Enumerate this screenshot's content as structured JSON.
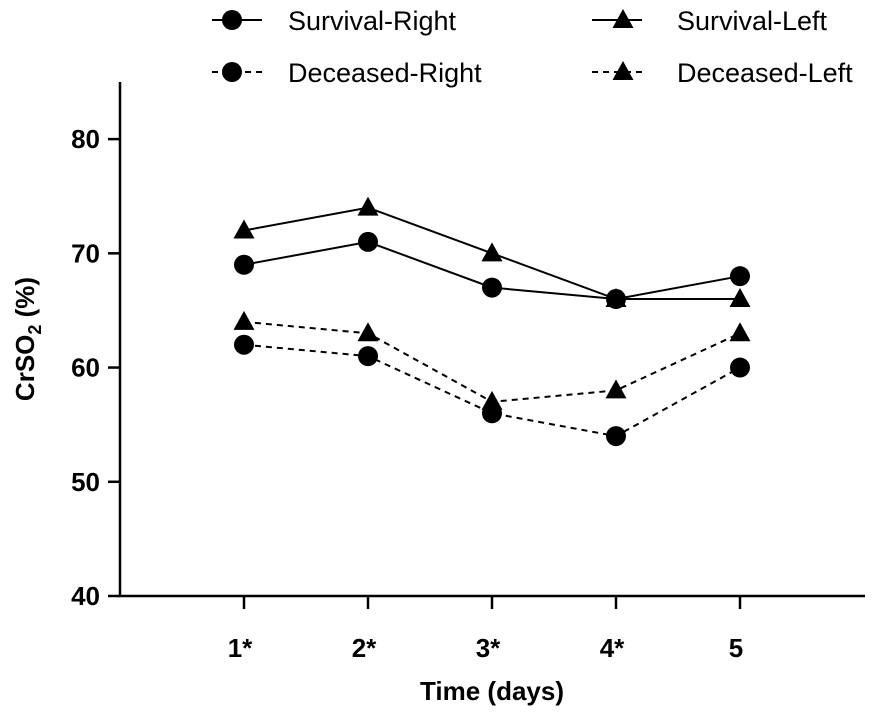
{
  "chart_data": {
    "type": "line",
    "title": "",
    "xlabel": "Time (days)",
    "ylabel": {
      "prefix": "CrSO",
      "subscript": "2",
      "suffix": " (%)"
    },
    "categories": [
      "1*",
      "2*",
      "3*",
      "4*",
      "5"
    ],
    "ylim": [
      40,
      85
    ],
    "yticks": [
      40,
      50,
      60,
      70,
      80
    ],
    "grid": false,
    "legend_position": "top",
    "series": [
      {
        "name": "Survival-Right",
        "marker": "circle",
        "line": "solid",
        "values": [
          69,
          71,
          67,
          66,
          68
        ]
      },
      {
        "name": "Survival-Left",
        "marker": "triangle",
        "line": "solid",
        "values": [
          72,
          74,
          70,
          66,
          66
        ]
      },
      {
        "name": "Deceased-Right",
        "marker": "circle",
        "line": "dashed",
        "values": [
          62,
          61,
          56,
          54,
          60
        ]
      },
      {
        "name": "Deceased-Left",
        "marker": "triangle",
        "line": "dashed",
        "values": [
          64,
          63,
          57,
          58,
          63
        ]
      }
    ]
  }
}
